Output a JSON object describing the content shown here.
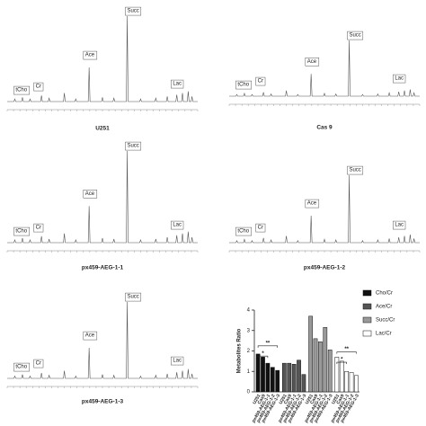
{
  "spectra": [
    {
      "caption": "U251",
      "labels": [
        "tCho",
        "Cr",
        "Ace",
        "Succ",
        "Lac"
      ]
    },
    {
      "caption": "Cas 9",
      "labels": [
        "tCho",
        "Cr",
        "Ace",
        "Succ",
        "Lac"
      ]
    },
    {
      "caption": "px459-AEG-1-1",
      "labels": [
        "tCho",
        "Cr",
        "Ace",
        "Succ",
        "Lac"
      ]
    },
    {
      "caption": "px459-AEG-1-2",
      "labels": [
        "tCho",
        "Cr",
        "Ace",
        "Succ",
        "Lac"
      ]
    },
    {
      "caption": "px459-AEG-1-3",
      "labels": [
        "tCho",
        "Cr",
        "Ace",
        "Succ",
        "Lac"
      ]
    }
  ],
  "chart_data": {
    "type": "bar",
    "ylabel": "Metabolites Ratio",
    "categories": [
      "U251",
      "Cas9",
      "px459-AEG-1-1",
      "px459-AEG-1-2",
      "px459-AEG-1-3"
    ],
    "series": [
      {
        "name": "Cho/Cr",
        "color": "#111111",
        "values": [
          1.85,
          1.7,
          1.4,
          1.2,
          1.05
        ]
      },
      {
        "name": "Ace/Cr",
        "color": "#555555",
        "values": [
          1.4,
          1.4,
          1.35,
          1.55,
          0.85
        ]
      },
      {
        "name": "Succ/Cr",
        "color": "#999999",
        "values": [
          3.7,
          2.6,
          2.45,
          3.15,
          2.05
        ]
      },
      {
        "name": "Lac/Cr",
        "color": "#ffffff",
        "values": [
          1.7,
          1.5,
          1.0,
          0.95,
          0.8
        ]
      }
    ],
    "ylim": [
      0,
      4
    ],
    "yticks": [
      0,
      1,
      2,
      3,
      4
    ],
    "annotations": [
      "**",
      "*",
      "**",
      "*"
    ]
  }
}
